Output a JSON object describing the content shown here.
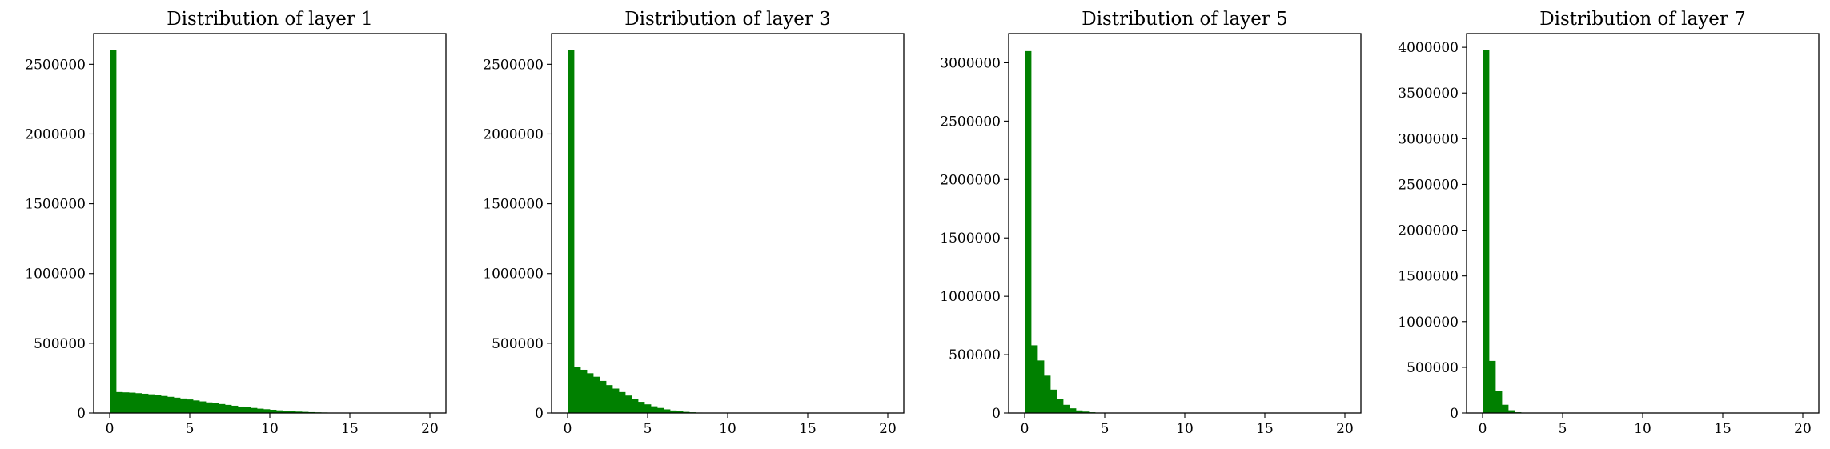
{
  "colors": {
    "bar": "#008000",
    "axis": "#000000",
    "background": "#ffffff"
  },
  "chart_data": [
    {
      "type": "bar",
      "title": "Distribution of layer 1",
      "xlabel": "",
      "ylabel": "",
      "grid": false,
      "xlim": [
        -1,
        21
      ],
      "ylim": [
        0,
        2720000
      ],
      "x_ticks": [
        0,
        5,
        10,
        15,
        20
      ],
      "y_ticks": [
        0,
        500000,
        1000000,
        1500000,
        2000000,
        2500000
      ],
      "bin_edges_start": 0,
      "bin_width": 0.4,
      "values": [
        2600000,
        150000,
        148000,
        146000,
        142000,
        138000,
        134000,
        128000,
        122000,
        116000,
        110000,
        104000,
        97000,
        90000,
        83000,
        76000,
        70000,
        64000,
        58000,
        52000,
        46000,
        41000,
        36000,
        31000,
        27000,
        23000,
        19000,
        16000,
        13000,
        10000,
        8000,
        6000,
        4500,
        3500,
        2500,
        1800,
        1200,
        800,
        500,
        300,
        200,
        100,
        60,
        30,
        15,
        8,
        4,
        2,
        1,
        0
      ]
    },
    {
      "type": "bar",
      "title": "Distribution of layer 3",
      "xlabel": "",
      "ylabel": "",
      "grid": false,
      "xlim": [
        -1,
        21
      ],
      "ylim": [
        0,
        2720000
      ],
      "x_ticks": [
        0,
        5,
        10,
        15,
        20
      ],
      "y_ticks": [
        0,
        500000,
        1000000,
        1500000,
        2000000,
        2500000
      ],
      "bin_edges_start": 0,
      "bin_width": 0.4,
      "values": [
        2600000,
        330000,
        310000,
        285000,
        260000,
        230000,
        200000,
        175000,
        150000,
        125000,
        100000,
        80000,
        62000,
        48000,
        36000,
        26000,
        18000,
        12000,
        8000,
        5000,
        3000,
        2000,
        1200,
        700,
        400,
        200,
        100,
        50,
        25,
        10,
        5,
        2,
        1,
        0,
        0,
        0,
        0,
        0,
        0,
        0,
        0,
        0,
        0,
        0,
        0,
        0,
        0,
        0,
        0,
        0
      ]
    },
    {
      "type": "bar",
      "title": "Distribution of layer 5",
      "xlabel": "",
      "ylabel": "",
      "grid": false,
      "xlim": [
        -1,
        21
      ],
      "ylim": [
        0,
        3250000
      ],
      "x_ticks": [
        0,
        5,
        10,
        15,
        20
      ],
      "y_ticks": [
        0,
        500000,
        1000000,
        1500000,
        2000000,
        2500000,
        3000000
      ],
      "bin_edges_start": 0,
      "bin_width": 0.4,
      "values": [
        3100000,
        580000,
        450000,
        320000,
        200000,
        120000,
        70000,
        40000,
        22000,
        12000,
        6000,
        3000,
        1500,
        700,
        300,
        150,
        60,
        25,
        10,
        4,
        1,
        0,
        0,
        0,
        0,
        0,
        0,
        0,
        0,
        0,
        0,
        0,
        0,
        0,
        0,
        0,
        0,
        0,
        0,
        0,
        0,
        0,
        0,
        0,
        0,
        0,
        0,
        0,
        0,
        0
      ]
    },
    {
      "type": "bar",
      "title": "Distribution of layer 7",
      "xlabel": "",
      "ylabel": "",
      "grid": false,
      "xlim": [
        -1,
        21
      ],
      "ylim": [
        0,
        4150000
      ],
      "x_ticks": [
        0,
        5,
        10,
        15,
        20
      ],
      "y_ticks": [
        0,
        500000,
        1000000,
        1500000,
        2000000,
        2500000,
        3000000,
        3500000,
        4000000
      ],
      "bin_edges_start": 0,
      "bin_width": 0.4,
      "values": [
        3970000,
        570000,
        240000,
        90000,
        30000,
        8000,
        2000,
        500,
        100,
        20,
        5,
        1,
        0,
        0,
        0,
        0,
        0,
        0,
        0,
        0,
        0,
        0,
        0,
        0,
        0,
        0,
        0,
        0,
        0,
        0,
        0,
        0,
        0,
        0,
        0,
        0,
        0,
        0,
        0,
        0,
        0,
        0,
        0,
        0,
        0,
        0,
        0,
        0,
        0,
        0
      ]
    }
  ]
}
